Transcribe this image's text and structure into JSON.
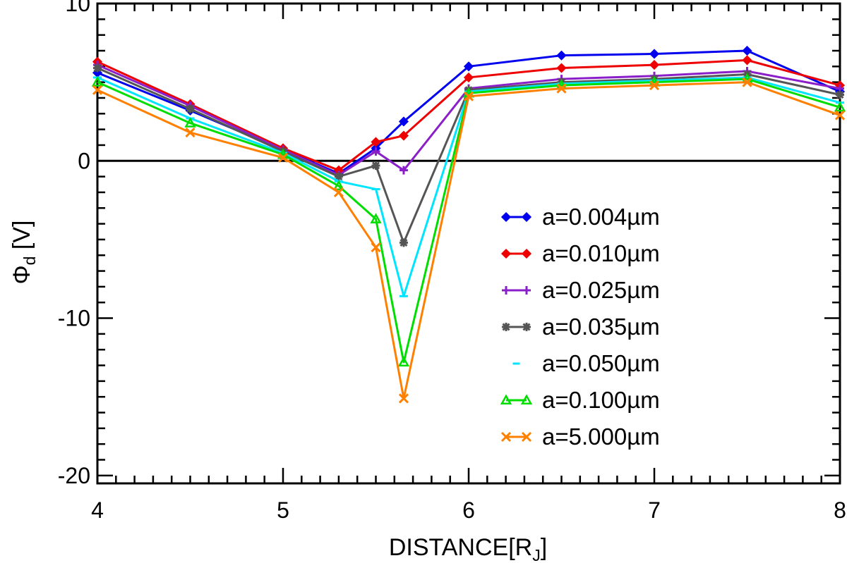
{
  "chart_data": {
    "type": "line",
    "title": "",
    "xlabel": "DISTANCE[R",
    "xlabel_sub": "J",
    "xlabel_close": "]",
    "ylabel_symbol": "Φ",
    "ylabel_sub": "d",
    "ylabel_unit": " [V]",
    "xlim": [
      4,
      8
    ],
    "ylim": [
      -20.5,
      10
    ],
    "x_ticks": [
      4,
      5,
      6,
      7,
      8
    ],
    "x_tick_labels": [
      "4",
      "5",
      "6",
      "7",
      "8"
    ],
    "y_ticks": [
      -20,
      -10,
      0,
      10
    ],
    "y_tick_labels": [
      "-20",
      "-10",
      "0",
      "10"
    ],
    "zero_line": true,
    "legend_position": "right-center",
    "x": [
      4.0,
      4.5,
      5.0,
      5.3,
      5.5,
      5.65,
      6.0,
      6.5,
      7.0,
      7.5,
      8.0
    ],
    "series": [
      {
        "name": "a=0.004µm",
        "color": "#0000ee",
        "marker": "diamond",
        "values": [
          5.6,
          3.2,
          0.7,
          -0.8,
          0.8,
          2.5,
          6.0,
          6.7,
          6.8,
          7.0,
          4.4
        ]
      },
      {
        "name": "a=0.010µm",
        "color": "#ee0000",
        "marker": "diamond",
        "values": [
          6.3,
          3.6,
          0.8,
          -0.6,
          1.2,
          1.6,
          5.3,
          5.9,
          6.1,
          6.4,
          4.8
        ]
      },
      {
        "name": "a=0.025µm",
        "color": "#8a1ec8",
        "marker": "plus",
        "values": [
          6.1,
          3.5,
          0.7,
          -0.9,
          0.6,
          -0.6,
          4.6,
          5.2,
          5.4,
          5.7,
          4.6
        ]
      },
      {
        "name": "a=0.035µm",
        "color": "#555555",
        "marker": "asterisk",
        "values": [
          5.9,
          3.3,
          0.6,
          -1.0,
          -0.3,
          -5.2,
          4.5,
          5.0,
          5.2,
          5.5,
          4.2
        ]
      },
      {
        "name": "a=0.050µm",
        "color": "#00e5ff",
        "marker": "dash",
        "values": [
          5.3,
          2.7,
          0.5,
          -1.3,
          -1.8,
          -8.6,
          4.4,
          4.9,
          5.1,
          5.3,
          3.7
        ]
      },
      {
        "name": "a=0.100µm",
        "color": "#00dd00",
        "marker": "triangle",
        "values": [
          5.0,
          2.4,
          0.4,
          -1.6,
          -3.7,
          -12.8,
          4.3,
          4.8,
          5.0,
          5.2,
          3.4
        ]
      },
      {
        "name": "a=5.000µm",
        "color": "#ff8000",
        "marker": "x",
        "values": [
          4.5,
          1.8,
          0.2,
          -2.0,
          -5.5,
          -15.1,
          4.1,
          4.6,
          4.8,
          5.0,
          2.9
        ]
      }
    ]
  }
}
